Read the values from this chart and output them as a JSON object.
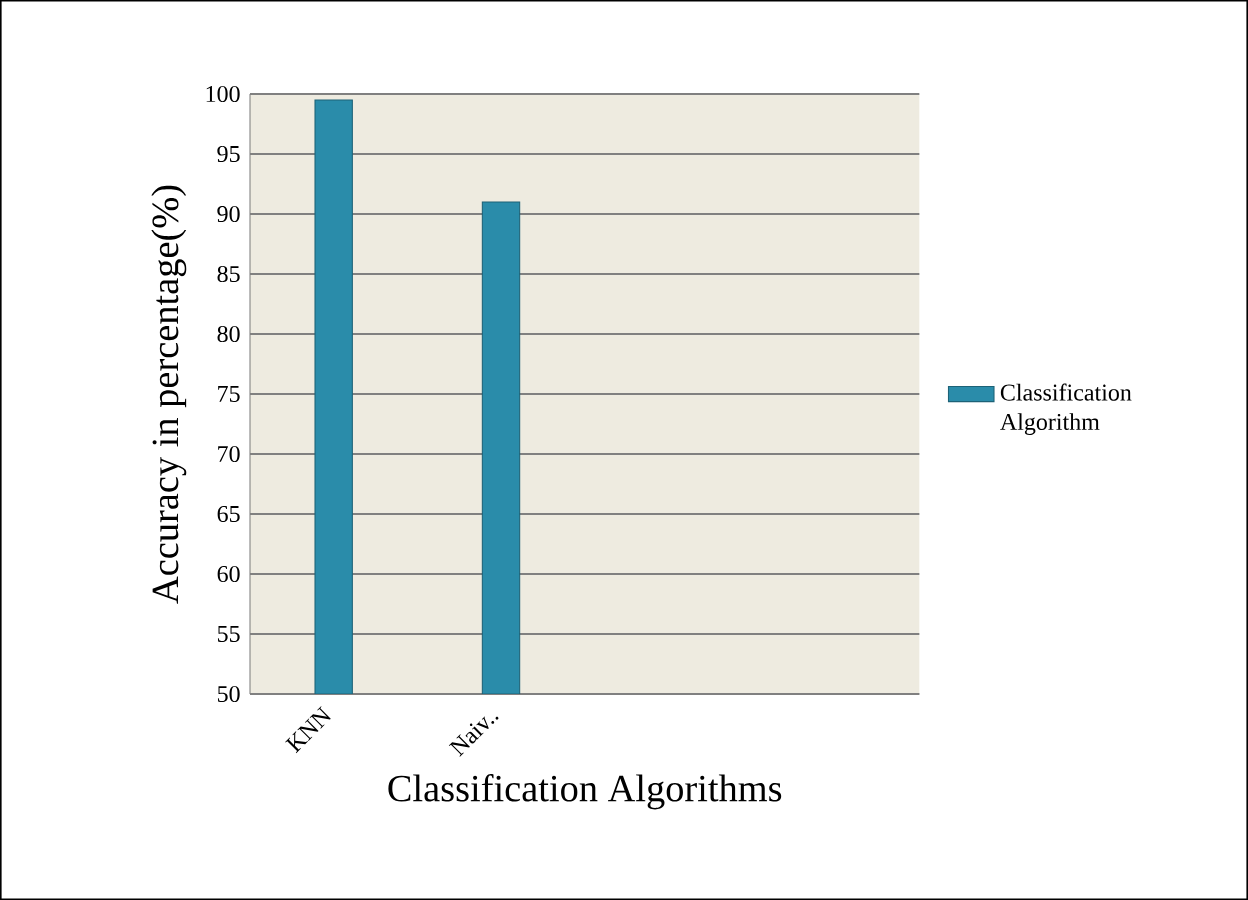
{
  "chart_data": {
    "type": "bar",
    "xlabel": "Classification Algorithms",
    "ylabel": "Accuracy in percentage(%)",
    "categories": [
      "KNN",
      "Naiv..",
      null,
      null
    ],
    "series": [
      {
        "name": "Classification Algorithm",
        "color": "#2a8caa",
        "values": [
          99.5,
          91,
          null,
          null
        ]
      }
    ],
    "ylim": [
      50,
      100
    ],
    "yticks": [
      50,
      55,
      60,
      65,
      70,
      75,
      80,
      85,
      90,
      95,
      100
    ],
    "grid": "y",
    "legend": "right"
  }
}
